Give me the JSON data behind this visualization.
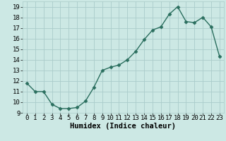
{
  "x": [
    0,
    1,
    2,
    3,
    4,
    5,
    6,
    7,
    8,
    9,
    10,
    11,
    12,
    13,
    14,
    15,
    16,
    17,
    18,
    19,
    20,
    21,
    22,
    23
  ],
  "y": [
    11.8,
    11.0,
    11.0,
    9.8,
    9.4,
    9.4,
    9.5,
    10.1,
    11.4,
    13.0,
    13.3,
    13.5,
    14.0,
    14.8,
    15.9,
    16.8,
    17.1,
    18.3,
    19.0,
    17.6,
    17.5,
    18.0,
    17.1,
    14.3
  ],
  "line_color": "#2a6e5e",
  "marker": "D",
  "marker_size": 2.5,
  "bg_color": "#cce8e4",
  "grid_color": "#aaccca",
  "xlabel": "Humidex (Indice chaleur)",
  "ylim": [
    9,
    19.5
  ],
  "yticks": [
    9,
    10,
    11,
    12,
    13,
    14,
    15,
    16,
    17,
    18,
    19
  ],
  "xticks": [
    0,
    1,
    2,
    3,
    4,
    5,
    6,
    7,
    8,
    9,
    10,
    11,
    12,
    13,
    14,
    15,
    16,
    17,
    18,
    19,
    20,
    21,
    22,
    23
  ],
  "xlabel_fontsize": 7.5,
  "tick_fontsize": 6.5,
  "line_width": 1.0
}
